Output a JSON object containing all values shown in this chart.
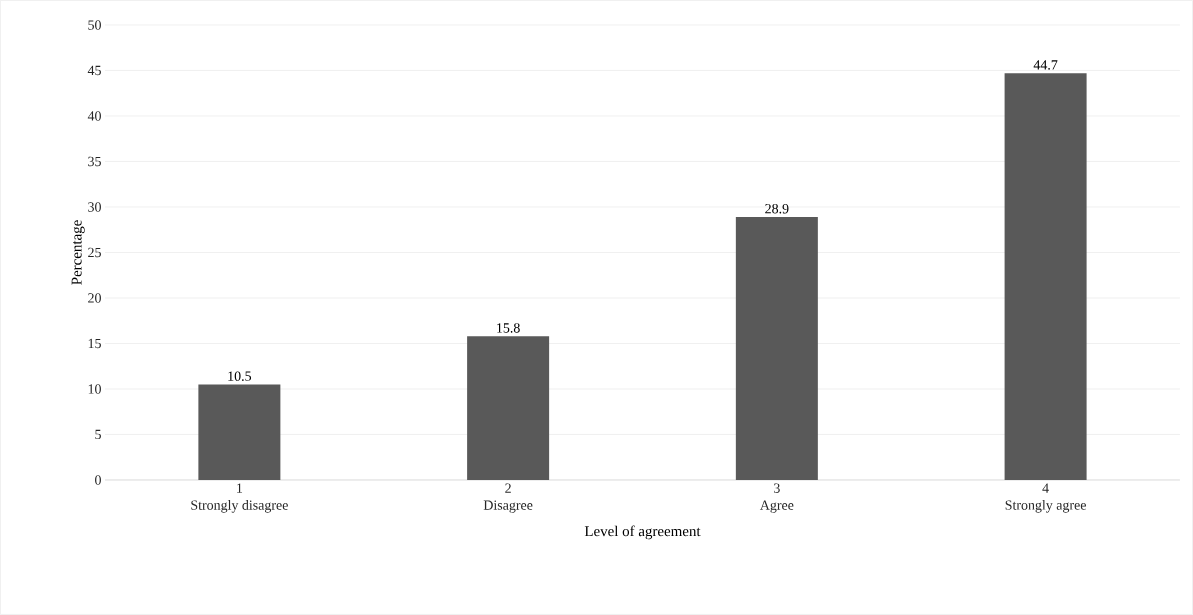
{
  "chart_data": {
    "type": "bar",
    "xlabel": "Level of agreement",
    "ylabel": "Percentage",
    "categories": [
      "1\nStrongly disagree",
      "2\nDisagree",
      "3\nAgree",
      "4\nStrongly agree"
    ],
    "values": [
      10.5,
      15.8,
      28.9,
      44.7
    ],
    "color": "#595959",
    "data_labels": true,
    "ylim": [
      0,
      50
    ],
    "yticks": [
      0,
      5,
      10,
      15,
      20,
      25,
      30,
      35,
      40,
      45,
      50
    ],
    "grid": "y"
  }
}
